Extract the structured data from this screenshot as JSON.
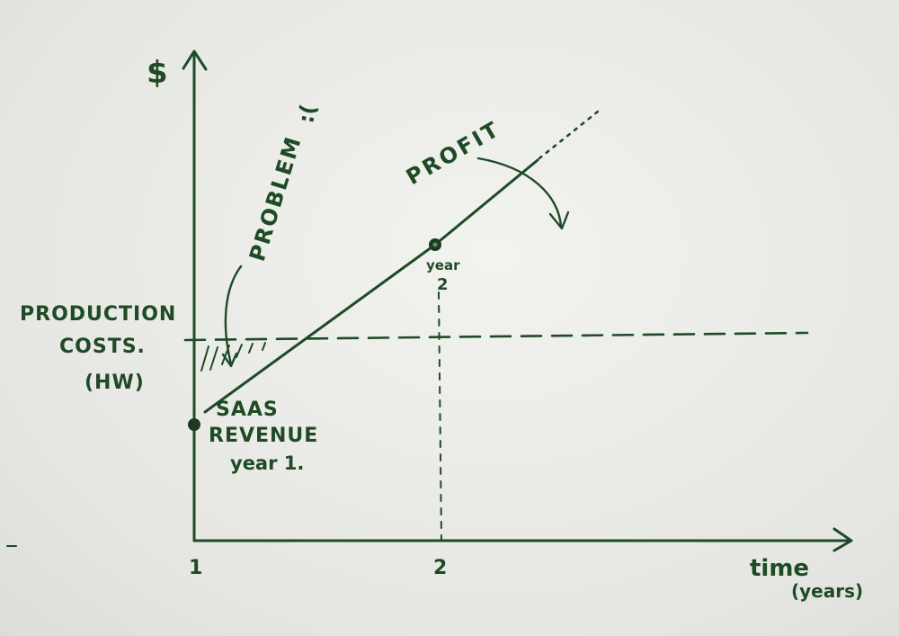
{
  "colors": {
    "ink": "#1f4a26",
    "paper": "#eeefeb"
  },
  "labels": {
    "y_axis": "$",
    "x_axis_line1": "time",
    "x_axis_line2": "(years)",
    "tick_1": "1",
    "tick_2": "2",
    "production_line1": "PRODUCTION",
    "production_line2": "COSTS.",
    "production_line3": "(HW)",
    "problem": "PROBLEM",
    "problem_face": ":(",
    "profit": "PROFIT",
    "year2_word": "year",
    "year2_num": "2",
    "saas_line1": "SAAS",
    "saas_line2": "REVENUE",
    "saas_line3": "year 1."
  }
}
